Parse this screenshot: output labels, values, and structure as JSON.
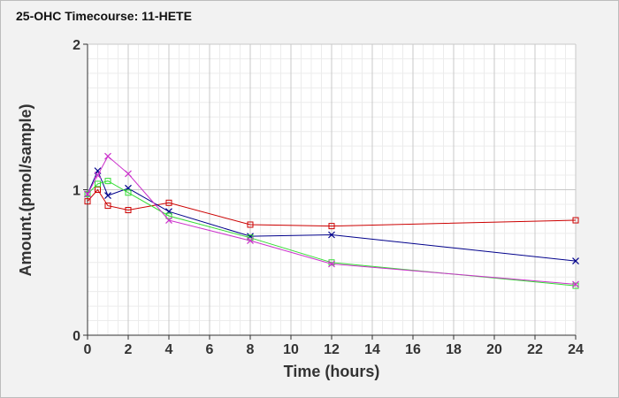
{
  "chart_data": {
    "type": "line",
    "title": "25-OHC Timecourse: 11-HETE",
    "xlabel": "Time (hours)",
    "ylabel": "Amount.(pmol/sample)",
    "xlim": [
      0,
      24
    ],
    "ylim": [
      0,
      2
    ],
    "xticks": [
      0,
      2,
      4,
      6,
      8,
      10,
      12,
      14,
      16,
      18,
      20,
      22,
      24
    ],
    "yticks": [
      0,
      1,
      2
    ],
    "grid": true,
    "series": [
      {
        "color": "#cc0000",
        "marker": "square",
        "x": [
          0,
          0.5,
          1,
          2,
          4,
          8,
          12,
          24
        ],
        "y": [
          0.92,
          1.0,
          0.89,
          0.86,
          0.91,
          0.76,
          0.75,
          0.79
        ]
      },
      {
        "color": "#00008b",
        "marker": "x",
        "x": [
          0,
          0.5,
          1,
          2,
          4,
          8,
          12,
          24
        ],
        "y": [
          0.97,
          1.13,
          0.96,
          1.01,
          0.85,
          0.68,
          0.69,
          0.51
        ]
      },
      {
        "color": "#33dd33",
        "marker": "square",
        "x": [
          0,
          0.5,
          1,
          2,
          4,
          8,
          12,
          24
        ],
        "y": [
          0.97,
          1.04,
          1.06,
          0.98,
          0.82,
          0.67,
          0.5,
          0.34
        ]
      },
      {
        "color": "#cc33cc",
        "marker": "x",
        "x": [
          0,
          0.5,
          1,
          2,
          4,
          8,
          12,
          24
        ],
        "y": [
          0.97,
          1.1,
          1.23,
          1.11,
          0.79,
          0.65,
          0.49,
          0.35
        ]
      }
    ]
  }
}
